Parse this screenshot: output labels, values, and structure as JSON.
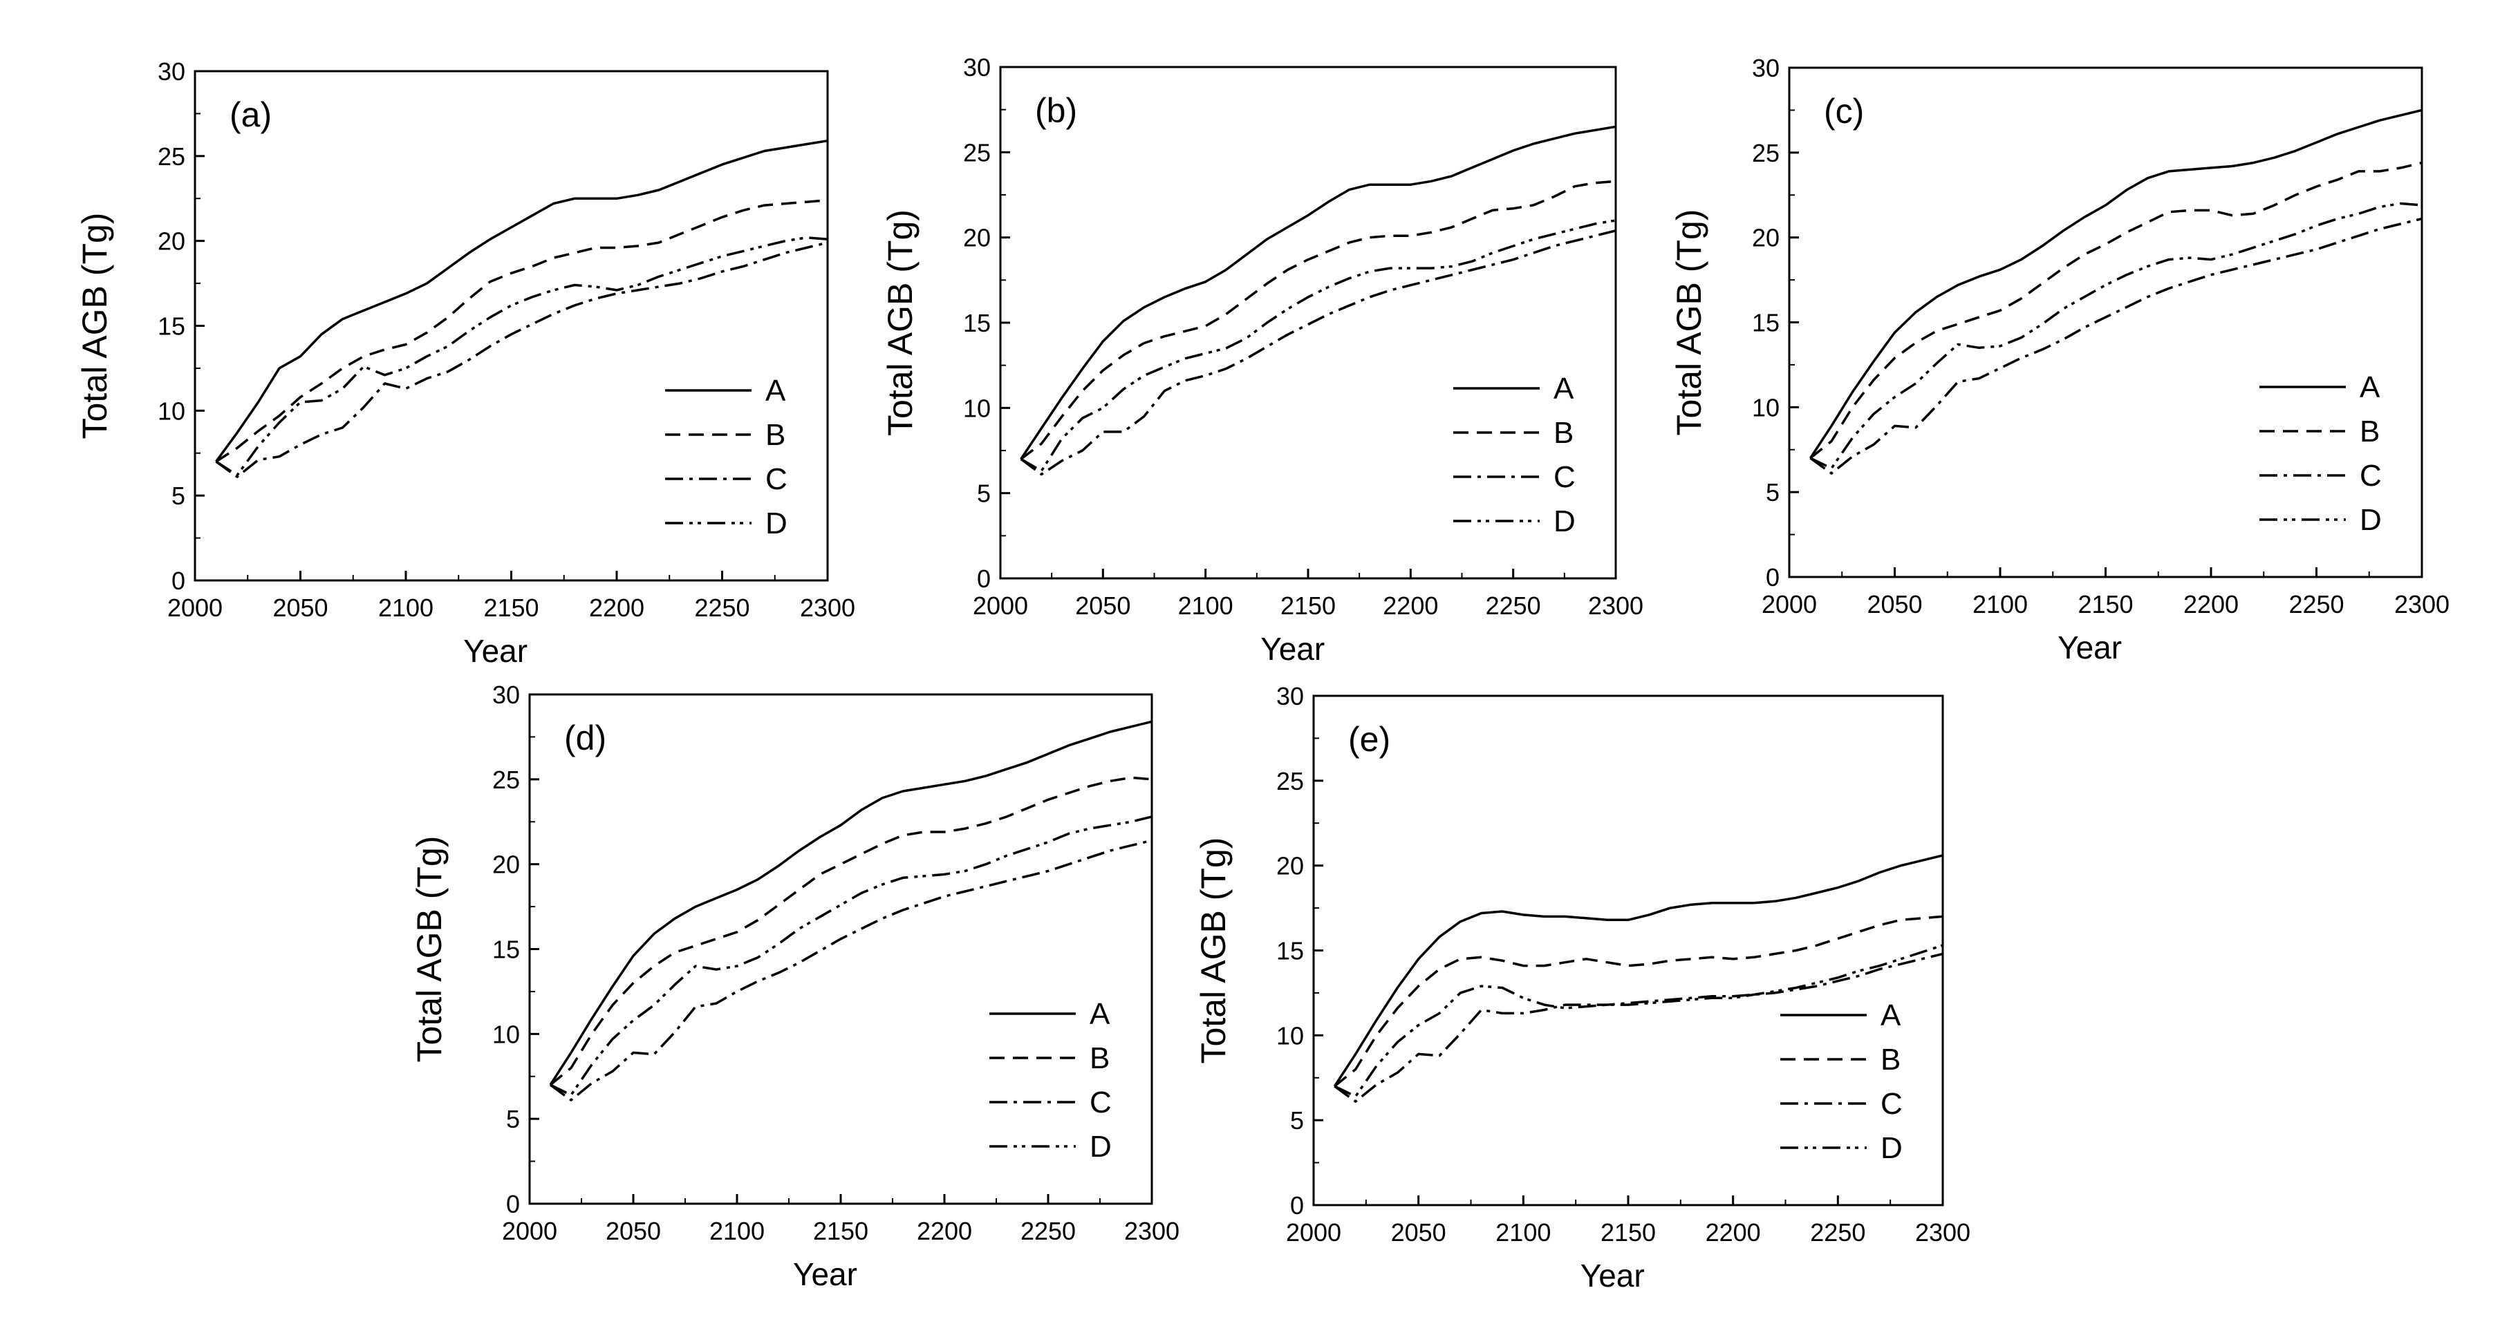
{
  "chart_data": [
    {
      "type": "line",
      "panel_label": "(a)",
      "xlabel": "Year",
      "ylabel": "Total AGB (Tg)",
      "xlim": [
        2000,
        2300
      ],
      "ylim": [
        0,
        30
      ],
      "x_ticks": [
        "2000",
        "2050",
        "2100",
        "2150",
        "2200",
        "2250",
        "2300"
      ],
      "y_ticks": [
        "0",
        "5",
        "10",
        "15",
        "20",
        "25",
        "30"
      ],
      "x": [
        2010,
        2020,
        2030,
        2040,
        2050,
        2060,
        2070,
        2080,
        2090,
        2100,
        2110,
        2120,
        2130,
        2140,
        2150,
        2160,
        2170,
        2180,
        2190,
        2200,
        2210,
        2220,
        2230,
        2240,
        2250,
        2260,
        2270,
        2280,
        2290,
        2300
      ],
      "series": [
        {
          "name": "A",
          "values": [
            7.0,
            8.7,
            10.5,
            12.5,
            13.2,
            14.5,
            15.4,
            15.9,
            16.4,
            16.9,
            17.5,
            18.4,
            19.3,
            20.1,
            20.8,
            21.5,
            22.2,
            22.5,
            22.5,
            22.5,
            22.7,
            23.0,
            23.5,
            24.0,
            24.5,
            24.9,
            25.3,
            25.5,
            25.7,
            25.9
          ]
        },
        {
          "name": "B",
          "values": [
            7.0,
            7.8,
            8.8,
            9.7,
            10.8,
            11.6,
            12.5,
            13.2,
            13.6,
            13.9,
            14.6,
            15.5,
            16.6,
            17.6,
            18.1,
            18.5,
            19.0,
            19.3,
            19.6,
            19.6,
            19.7,
            19.9,
            20.4,
            20.9,
            21.4,
            21.8,
            22.1,
            22.2,
            22.3,
            22.4
          ]
        },
        {
          "name": "C",
          "values": [
            7.0,
            6.1,
            7.1,
            7.3,
            8.0,
            8.6,
            9.0,
            10.2,
            11.6,
            11.3,
            11.9,
            12.3,
            13.0,
            13.8,
            14.5,
            15.1,
            15.7,
            16.2,
            16.6,
            16.9,
            17.1,
            17.3,
            17.5,
            17.8,
            18.2,
            18.5,
            18.9,
            19.3,
            19.6,
            19.9
          ]
        },
        {
          "name": "D",
          "values": [
            7.0,
            6.2,
            7.9,
            9.3,
            10.5,
            10.6,
            11.3,
            12.6,
            12.1,
            12.5,
            13.2,
            13.8,
            14.7,
            15.5,
            16.2,
            16.7,
            17.1,
            17.4,
            17.3,
            17.1,
            17.4,
            17.9,
            18.3,
            18.7,
            19.1,
            19.4,
            19.7,
            20.0,
            20.2,
            20.1
          ]
        }
      ],
      "legend": [
        "A",
        "B",
        "C",
        "D"
      ]
    },
    {
      "type": "line",
      "panel_label": "(b)",
      "xlabel": "Year",
      "ylabel": "Total AGB (Tg)",
      "xlim": [
        2000,
        2300
      ],
      "ylim": [
        0,
        30
      ],
      "x_ticks": [
        "2000",
        "2050",
        "2100",
        "2150",
        "2200",
        "2250",
        "2300"
      ],
      "y_ticks": [
        "0",
        "5",
        "10",
        "15",
        "20",
        "25",
        "30"
      ],
      "x": [
        2010,
        2020,
        2030,
        2040,
        2050,
        2060,
        2070,
        2080,
        2090,
        2100,
        2110,
        2120,
        2130,
        2140,
        2150,
        2160,
        2170,
        2180,
        2190,
        2200,
        2210,
        2220,
        2230,
        2240,
        2250,
        2260,
        2270,
        2280,
        2290,
        2300
      ],
      "series": [
        {
          "name": "A",
          "values": [
            7.0,
            8.8,
            10.6,
            12.3,
            13.9,
            15.1,
            15.9,
            16.5,
            17.0,
            17.4,
            18.1,
            19.0,
            19.9,
            20.6,
            21.3,
            22.1,
            22.8,
            23.1,
            23.1,
            23.1,
            23.3,
            23.6,
            24.1,
            24.6,
            25.1,
            25.5,
            25.8,
            26.1,
            26.3,
            26.5
          ]
        },
        {
          "name": "B",
          "values": [
            7.0,
            7.9,
            9.5,
            11.0,
            12.2,
            13.1,
            13.8,
            14.2,
            14.5,
            14.8,
            15.5,
            16.4,
            17.3,
            18.1,
            18.7,
            19.2,
            19.7,
            20.0,
            20.1,
            20.1,
            20.3,
            20.6,
            21.1,
            21.6,
            21.7,
            21.9,
            22.4,
            23.0,
            23.2,
            23.3
          ]
        },
        {
          "name": "C",
          "values": [
            7.0,
            6.1,
            6.9,
            7.5,
            8.6,
            8.6,
            9.5,
            11.0,
            11.6,
            11.9,
            12.3,
            12.9,
            13.6,
            14.3,
            14.9,
            15.5,
            16.0,
            16.5,
            16.9,
            17.2,
            17.5,
            17.8,
            18.1,
            18.4,
            18.7,
            19.1,
            19.5,
            19.8,
            20.1,
            20.4
          ]
        },
        {
          "name": "D",
          "values": [
            7.0,
            6.3,
            8.2,
            9.4,
            10.0,
            11.1,
            11.9,
            12.4,
            12.9,
            13.2,
            13.5,
            14.1,
            15.0,
            15.8,
            16.5,
            17.1,
            17.6,
            18.0,
            18.2,
            18.2,
            18.2,
            18.3,
            18.6,
            19.1,
            19.5,
            19.9,
            20.2,
            20.5,
            20.8,
            21.0
          ]
        }
      ],
      "legend": [
        "A",
        "B",
        "C",
        "D"
      ]
    },
    {
      "type": "line",
      "panel_label": "(c)",
      "xlabel": "Year",
      "ylabel": "Total AGB (Tg)",
      "xlim": [
        2000,
        2300
      ],
      "ylim": [
        0,
        30
      ],
      "x_ticks": [
        "2000",
        "2050",
        "2100",
        "2150",
        "2200",
        "2250",
        "2300"
      ],
      "y_ticks": [
        "0",
        "5",
        "10",
        "15",
        "20",
        "25",
        "30"
      ],
      "x": [
        2010,
        2020,
        2030,
        2040,
        2050,
        2060,
        2070,
        2080,
        2090,
        2100,
        2110,
        2120,
        2130,
        2140,
        2150,
        2160,
        2170,
        2180,
        2190,
        2200,
        2210,
        2220,
        2230,
        2240,
        2250,
        2260,
        2270,
        2280,
        2290,
        2300
      ],
      "series": [
        {
          "name": "A",
          "values": [
            7.0,
            8.9,
            10.9,
            12.7,
            14.4,
            15.6,
            16.5,
            17.2,
            17.7,
            18.1,
            18.7,
            19.5,
            20.4,
            21.2,
            21.9,
            22.8,
            23.5,
            23.9,
            24.0,
            24.1,
            24.2,
            24.4,
            24.7,
            25.1,
            25.6,
            26.1,
            26.5,
            26.9,
            27.2,
            27.5
          ]
        },
        {
          "name": "B",
          "values": [
            7.0,
            8.0,
            10.0,
            11.6,
            12.9,
            13.8,
            14.5,
            14.9,
            15.3,
            15.7,
            16.4,
            17.3,
            18.2,
            19.0,
            19.6,
            20.3,
            20.9,
            21.5,
            21.6,
            21.6,
            21.3,
            21.4,
            21.9,
            22.5,
            23.0,
            23.4,
            23.9,
            23.9,
            24.1,
            24.4
          ]
        },
        {
          "name": "C",
          "values": [
            7.0,
            6.1,
            7.1,
            7.8,
            8.9,
            8.8,
            10.1,
            11.5,
            11.7,
            12.3,
            12.9,
            13.4,
            14.0,
            14.7,
            15.3,
            15.9,
            16.5,
            17.0,
            17.4,
            17.8,
            18.1,
            18.4,
            18.7,
            19.0,
            19.3,
            19.7,
            20.1,
            20.5,
            20.8,
            21.1
          ]
        },
        {
          "name": "D",
          "values": [
            7.0,
            6.4,
            8.2,
            9.6,
            10.6,
            11.4,
            12.6,
            13.7,
            13.5,
            13.6,
            14.1,
            14.9,
            15.8,
            16.5,
            17.2,
            17.8,
            18.3,
            18.7,
            18.8,
            18.7,
            19.0,
            19.4,
            19.8,
            20.2,
            20.7,
            21.1,
            21.4,
            21.8,
            22.0,
            21.9
          ]
        }
      ],
      "legend": [
        "A",
        "B",
        "C",
        "D"
      ]
    },
    {
      "type": "line",
      "panel_label": "(d)",
      "xlabel": "Year",
      "ylabel": "Total AGB (Tg)",
      "xlim": [
        2000,
        2300
      ],
      "ylim": [
        0,
        30
      ],
      "x_ticks": [
        "2000",
        "2050",
        "2100",
        "2150",
        "2200",
        "2250",
        "2300"
      ],
      "y_ticks": [
        "0",
        "5",
        "10",
        "15",
        "20",
        "25",
        "30"
      ],
      "x": [
        2010,
        2020,
        2030,
        2040,
        2050,
        2060,
        2070,
        2080,
        2090,
        2100,
        2110,
        2120,
        2130,
        2140,
        2150,
        2160,
        2170,
        2180,
        2190,
        2200,
        2210,
        2220,
        2230,
        2240,
        2250,
        2260,
        2270,
        2280,
        2290,
        2300
      ],
      "series": [
        {
          "name": "A",
          "values": [
            7.0,
            8.9,
            10.9,
            12.8,
            14.6,
            15.9,
            16.8,
            17.5,
            18.0,
            18.5,
            19.1,
            19.9,
            20.8,
            21.6,
            22.3,
            23.2,
            23.9,
            24.3,
            24.5,
            24.7,
            24.9,
            25.2,
            25.6,
            26.0,
            26.5,
            27.0,
            27.4,
            27.8,
            28.1,
            28.4
          ]
        },
        {
          "name": "B",
          "values": [
            7.0,
            8.0,
            10.0,
            11.7,
            13.0,
            14.0,
            14.8,
            15.2,
            15.6,
            16.0,
            16.7,
            17.6,
            18.5,
            19.4,
            20.0,
            20.6,
            21.2,
            21.7,
            21.9,
            21.9,
            22.1,
            22.4,
            22.8,
            23.3,
            23.8,
            24.2,
            24.6,
            24.9,
            25.1,
            25.0
          ]
        },
        {
          "name": "C",
          "values": [
            7.0,
            6.1,
            7.1,
            7.8,
            8.9,
            8.8,
            10.1,
            11.6,
            11.8,
            12.5,
            13.1,
            13.6,
            14.2,
            14.9,
            15.6,
            16.2,
            16.8,
            17.3,
            17.7,
            18.1,
            18.4,
            18.7,
            19.0,
            19.3,
            19.6,
            20.0,
            20.4,
            20.8,
            21.1,
            21.4
          ]
        },
        {
          "name": "D",
          "values": [
            7.0,
            6.4,
            8.2,
            9.7,
            10.8,
            11.7,
            12.9,
            14.0,
            13.8,
            14.0,
            14.5,
            15.3,
            16.2,
            16.9,
            17.6,
            18.3,
            18.8,
            19.2,
            19.3,
            19.4,
            19.6,
            20.0,
            20.5,
            20.9,
            21.3,
            21.8,
            22.1,
            22.3,
            22.5,
            22.8
          ]
        }
      ],
      "legend": [
        "A",
        "B",
        "C",
        "D"
      ]
    },
    {
      "type": "line",
      "panel_label": "(e)",
      "xlabel": "Year",
      "ylabel": "Total AGB (Tg)",
      "xlim": [
        2000,
        2300
      ],
      "ylim": [
        0,
        30
      ],
      "x_ticks": [
        "2000",
        "2050",
        "2100",
        "2150",
        "2200",
        "2250",
        "2300"
      ],
      "y_ticks": [
        "0",
        "5",
        "10",
        "15",
        "20",
        "25",
        "30"
      ],
      "x": [
        2010,
        2020,
        2030,
        2040,
        2050,
        2060,
        2070,
        2080,
        2090,
        2100,
        2110,
        2120,
        2130,
        2140,
        2150,
        2160,
        2170,
        2180,
        2190,
        2200,
        2210,
        2220,
        2230,
        2240,
        2250,
        2260,
        2270,
        2280,
        2290,
        2300
      ],
      "series": [
        {
          "name": "A",
          "values": [
            7.0,
            8.9,
            10.9,
            12.8,
            14.5,
            15.8,
            16.7,
            17.2,
            17.3,
            17.1,
            17.0,
            17.0,
            16.9,
            16.8,
            16.8,
            17.1,
            17.5,
            17.7,
            17.8,
            17.8,
            17.8,
            17.9,
            18.1,
            18.4,
            18.7,
            19.1,
            19.6,
            20.0,
            20.3,
            20.6
          ]
        },
        {
          "name": "B",
          "values": [
            7.0,
            8.0,
            10.0,
            11.6,
            12.9,
            13.9,
            14.5,
            14.6,
            14.4,
            14.1,
            14.1,
            14.3,
            14.5,
            14.3,
            14.1,
            14.2,
            14.4,
            14.5,
            14.6,
            14.5,
            14.6,
            14.8,
            15.0,
            15.3,
            15.7,
            16.1,
            16.5,
            16.8,
            16.9,
            17.0
          ]
        },
        {
          "name": "C",
          "values": [
            7.0,
            6.1,
            7.1,
            7.8,
            8.9,
            8.8,
            10.1,
            11.5,
            11.3,
            11.3,
            11.5,
            11.8,
            11.8,
            11.8,
            11.9,
            12.0,
            12.1,
            12.2,
            12.3,
            12.3,
            12.4,
            12.5,
            12.7,
            12.9,
            13.2,
            13.5,
            13.9,
            14.2,
            14.5,
            14.8
          ]
        },
        {
          "name": "D",
          "values": [
            7.0,
            6.4,
            8.2,
            9.6,
            10.6,
            11.3,
            12.5,
            12.9,
            12.8,
            12.2,
            11.8,
            11.6,
            11.7,
            11.8,
            11.8,
            11.9,
            12.0,
            12.1,
            12.2,
            12.2,
            12.4,
            12.6,
            12.8,
            13.1,
            13.4,
            13.8,
            14.1,
            14.5,
            14.9,
            15.3
          ]
        }
      ],
      "legend": [
        "A",
        "B",
        "C",
        "D"
      ]
    }
  ]
}
